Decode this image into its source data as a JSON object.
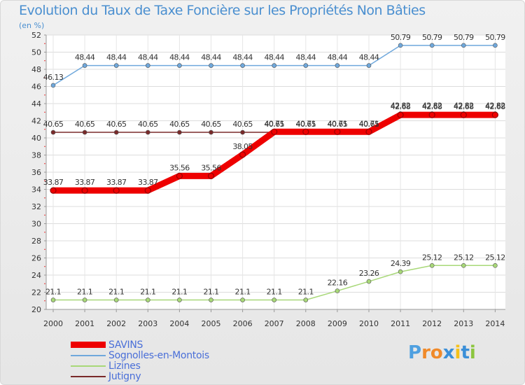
{
  "title": "Evolution du Taux de Taxe Foncière sur les Propriétés Non Bâties",
  "subtitle": "(en %)",
  "logo": "Proxiti",
  "logo_colors": [
    "#4fa0e0",
    "#f08a2a",
    "#f08a2a",
    "#3b8fd8",
    "#f5c11a",
    "#3b8fd8",
    "#8cc63f"
  ],
  "chart_data": {
    "type": "line",
    "title": "Evolution du Taux de Taxe Foncière sur les Propriétés Non Bâties",
    "ylabel": "(en %)",
    "x": [
      "2000",
      "2001",
      "2002",
      "2003",
      "2004",
      "2005",
      "2006",
      "2007",
      "2008",
      "2009",
      "2010",
      "2011",
      "2012",
      "2013",
      "2014"
    ],
    "ylim": [
      20,
      52
    ],
    "yticks": [
      20,
      22,
      24,
      26,
      28,
      30,
      32,
      34,
      36,
      38,
      40,
      42,
      44,
      46,
      48,
      50,
      52
    ],
    "grid": true,
    "legend_position": "bottom-left",
    "series": [
      {
        "name": "Sognolles-en-Montois",
        "color": "#6fa8dc",
        "values": [
          46.13,
          48.44,
          48.44,
          48.44,
          48.44,
          48.44,
          48.44,
          48.44,
          48.44,
          48.44,
          48.44,
          50.79,
          50.79,
          50.79,
          50.79
        ],
        "labels": [
          "46.13",
          "48.44",
          "48.44",
          "48.44",
          "48.44",
          "48.44",
          "48.44",
          "48.44",
          "48.44",
          "48.44",
          "48.44",
          "50.79",
          "50.79",
          "50.79",
          "50.79"
        ]
      },
      {
        "name": "Jutigny",
        "color": "#7a2a2a",
        "values": [
          40.65,
          40.65,
          40.65,
          40.65,
          40.65,
          40.65,
          40.65,
          40.65,
          40.65,
          40.65,
          40.65,
          42.82,
          42.82,
          42.82,
          42.82
        ],
        "labels": [
          "40.65",
          "40.65",
          "40.65",
          "40.65",
          "40.65",
          "40.65",
          "40.65",
          "40.65",
          "40.65",
          "40.65",
          "40.65",
          "42.82",
          "42.82",
          "42.82",
          "42.82"
        ]
      },
      {
        "name": "SAVINS",
        "color": "#ee0000",
        "values": [
          33.87,
          33.87,
          33.87,
          33.87,
          35.56,
          35.56,
          38.05,
          40.71,
          40.71,
          40.71,
          40.71,
          42.68,
          42.68,
          42.68,
          42.68
        ],
        "labels": [
          "33.87",
          "33.87",
          "33.87",
          "33.87",
          "35.56",
          "35.56",
          "38.05",
          "40.71",
          "40.71",
          "40.71",
          "40.71",
          "42.68",
          "42.68",
          "42.68",
          "42.68"
        ]
      },
      {
        "name": "Lizines",
        "color": "#a8d878",
        "values": [
          21.1,
          21.1,
          21.1,
          21.1,
          21.1,
          21.1,
          21.1,
          21.1,
          21.1,
          22.16,
          23.26,
          24.39,
          25.12,
          25.12,
          25.12
        ],
        "labels": [
          "21.1",
          "21.1",
          "21.1",
          "21.1",
          "21.1",
          "21.1",
          "21.1",
          "21.1",
          "21.1",
          "22.16",
          "23.26",
          "24.39",
          "25.12",
          "25.12",
          "25.12"
        ]
      }
    ],
    "legend": [
      "SAVINS",
      "Sognolles-en-Montois",
      "Lizines",
      "Jutigny"
    ]
  }
}
